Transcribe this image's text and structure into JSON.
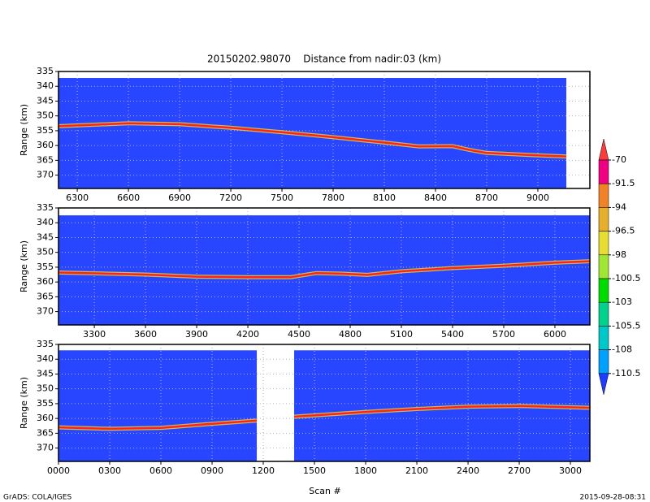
{
  "title": "20150202.98070    Distance from nadir:03 (km)",
  "x_label": "Scan #",
  "footer_left": "GrADS: COLA/IGES",
  "footer_right": "2015-09-28-08:31",
  "colorbar": {
    "levels": [
      -70,
      -91.5,
      -94,
      -96.5,
      -98,
      -100.5,
      -103,
      -105.5,
      -108,
      -110.5
    ],
    "colors": [
      "#fa3c3c",
      "#f00082",
      "#f08228",
      "#e6af2d",
      "#e6dc32",
      "#a0e632",
      "#00dc00",
      "#00d28c",
      "#00c8c8",
      "#00a0ff",
      "#1e3cff"
    ]
  },
  "chart_data": [
    {
      "type": "line",
      "y_label": "Range (km)",
      "xlim": [
        6190,
        9305
      ],
      "ylim": [
        335,
        374.5
      ],
      "y_inverted": true,
      "xticks": [
        6300,
        6600,
        6900,
        7200,
        7500,
        7800,
        8100,
        8400,
        8700,
        9000
      ],
      "yticks": [
        335,
        340,
        345,
        350,
        355,
        360,
        365,
        370
      ],
      "grid": true,
      "background": "#2846ff",
      "data_top": 337.2,
      "coverage": [
        [
          6190,
          9167
        ]
      ],
      "x": [
        6190,
        6600,
        6900,
        7200,
        7500,
        7800,
        8100,
        8300,
        8500,
        8600,
        8700,
        9000,
        9167
      ],
      "values": [
        353.5,
        352.5,
        352.8,
        354,
        355.5,
        357.2,
        359,
        360.3,
        360.2,
        361.5,
        362.5,
        363.3,
        363.7
      ],
      "color": "#ff2020"
    },
    {
      "type": "line",
      "y_label": "Range (km)",
      "xlim": [
        3090,
        6205
      ],
      "ylim": [
        335,
        374.5
      ],
      "y_inverted": true,
      "xticks": [
        3300,
        3600,
        3900,
        4200,
        4500,
        4800,
        5100,
        5400,
        5700,
        6000
      ],
      "yticks": [
        335,
        340,
        345,
        350,
        355,
        360,
        365,
        370
      ],
      "grid": true,
      "background": "#2846ff",
      "data_top": 337.5,
      "coverage": [
        [
          3090,
          6205
        ]
      ],
      "x": [
        3090,
        3600,
        3900,
        4200,
        4450,
        4600,
        4750,
        4900,
        5100,
        5400,
        5700,
        6000,
        6205
      ],
      "values": [
        356.8,
        357.5,
        358.2,
        358.4,
        358.4,
        357,
        357.2,
        357.6,
        356.4,
        355.3,
        354.5,
        353.5,
        353
      ],
      "color": "#ff2020"
    },
    {
      "type": "line",
      "y_label": "Range (km)",
      "xlim": [
        0,
        3114
      ],
      "ylim": [
        335,
        374.5
      ],
      "y_inverted": true,
      "xticks": [
        {
          "value": 0,
          "label": "0000"
        },
        {
          "value": 300,
          "label": "0300"
        },
        {
          "value": 600,
          "label": "0600"
        },
        {
          "value": 900,
          "label": "0900"
        },
        1200,
        1500,
        1800,
        2100,
        2400,
        2700,
        3000
      ],
      "yticks": [
        335,
        340,
        345,
        350,
        355,
        360,
        365,
        370
      ],
      "grid": true,
      "background": "#2846ff",
      "data_top": 337,
      "coverage": [
        [
          0,
          1162
        ],
        [
          1381,
          3114
        ]
      ],
      "x": [
        0,
        300,
        600,
        900,
        1162,
        1270,
        1381,
        1800,
        2100,
        2400,
        2700,
        3114
      ],
      "values": [
        363,
        363.5,
        363.2,
        361.8,
        360.7,
        null,
        359.4,
        357.8,
        356.8,
        356,
        355.8,
        356.4
      ],
      "color": "#ff2020"
    }
  ]
}
